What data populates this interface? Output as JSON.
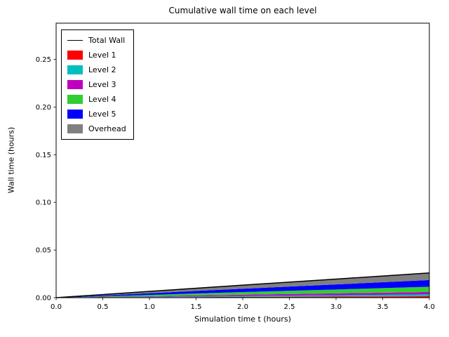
{
  "chart_data": {
    "type": "area",
    "stacked": true,
    "title": "Cumulative wall time on each level",
    "xlabel": "Simulation time t (hours)",
    "ylabel": "Wall time (hours)",
    "xlim": [
      0.0,
      4.0
    ],
    "ylim": [
      0.0,
      0.288
    ],
    "grid": false,
    "x_ticks": [
      0.0,
      0.5,
      1.0,
      1.5,
      2.0,
      2.5,
      3.0,
      3.5,
      4.0
    ],
    "x_tick_labels": [
      "0.0",
      "0.5",
      "1.0",
      "1.5",
      "2.0",
      "2.5",
      "3.0",
      "3.5",
      "4.0"
    ],
    "y_ticks": [
      0.0,
      0.05,
      0.1,
      0.15,
      0.2,
      0.25
    ],
    "y_tick_labels": [
      "0.00",
      "0.05",
      "0.10",
      "0.15",
      "0.20",
      "0.25"
    ],
    "x": [
      0,
      1,
      2,
      3,
      4
    ],
    "series": [
      {
        "name": "Level 1",
        "color": "#ff0000",
        "values": [
          0,
          0.0004,
          0.0008,
          0.0011,
          0.0015
        ]
      },
      {
        "name": "Level 2",
        "color": "#00bfbf",
        "values": [
          0,
          0.0005,
          0.001,
          0.0015,
          0.002
        ]
      },
      {
        "name": "Level 3",
        "color": "#bf00bf",
        "values": [
          0,
          0.0006,
          0.0013,
          0.0019,
          0.0025
        ]
      },
      {
        "name": "Level 4",
        "color": "#32cd32",
        "values": [
          0,
          0.0014,
          0.0028,
          0.0041,
          0.0055
        ]
      },
      {
        "name": "Level 5",
        "color": "#0000ff",
        "values": [
          0,
          0.0018,
          0.0035,
          0.0053,
          0.007
        ]
      },
      {
        "name": "Overhead",
        "color": "#808080",
        "values": [
          0,
          0.0019,
          0.0038,
          0.0056,
          0.0075
        ]
      }
    ],
    "line_series": {
      "name": "Total Wall",
      "color": "#000000",
      "values": [
        0,
        0.0066,
        0.0132,
        0.0195,
        0.026
      ]
    },
    "legend": {
      "position": "upper left",
      "entries": [
        {
          "label": "Total Wall",
          "color": "#000000",
          "type": "line"
        },
        {
          "label": "Level 1",
          "color": "#ff0000",
          "type": "patch"
        },
        {
          "label": "Level 2",
          "color": "#00bfbf",
          "type": "patch"
        },
        {
          "label": "Level 3",
          "color": "#bf00bf",
          "type": "patch"
        },
        {
          "label": "Level 4",
          "color": "#32cd32",
          "type": "patch"
        },
        {
          "label": "Level 5",
          "color": "#0000ff",
          "type": "patch"
        },
        {
          "label": "Overhead",
          "color": "#808080",
          "type": "patch"
        }
      ]
    }
  }
}
